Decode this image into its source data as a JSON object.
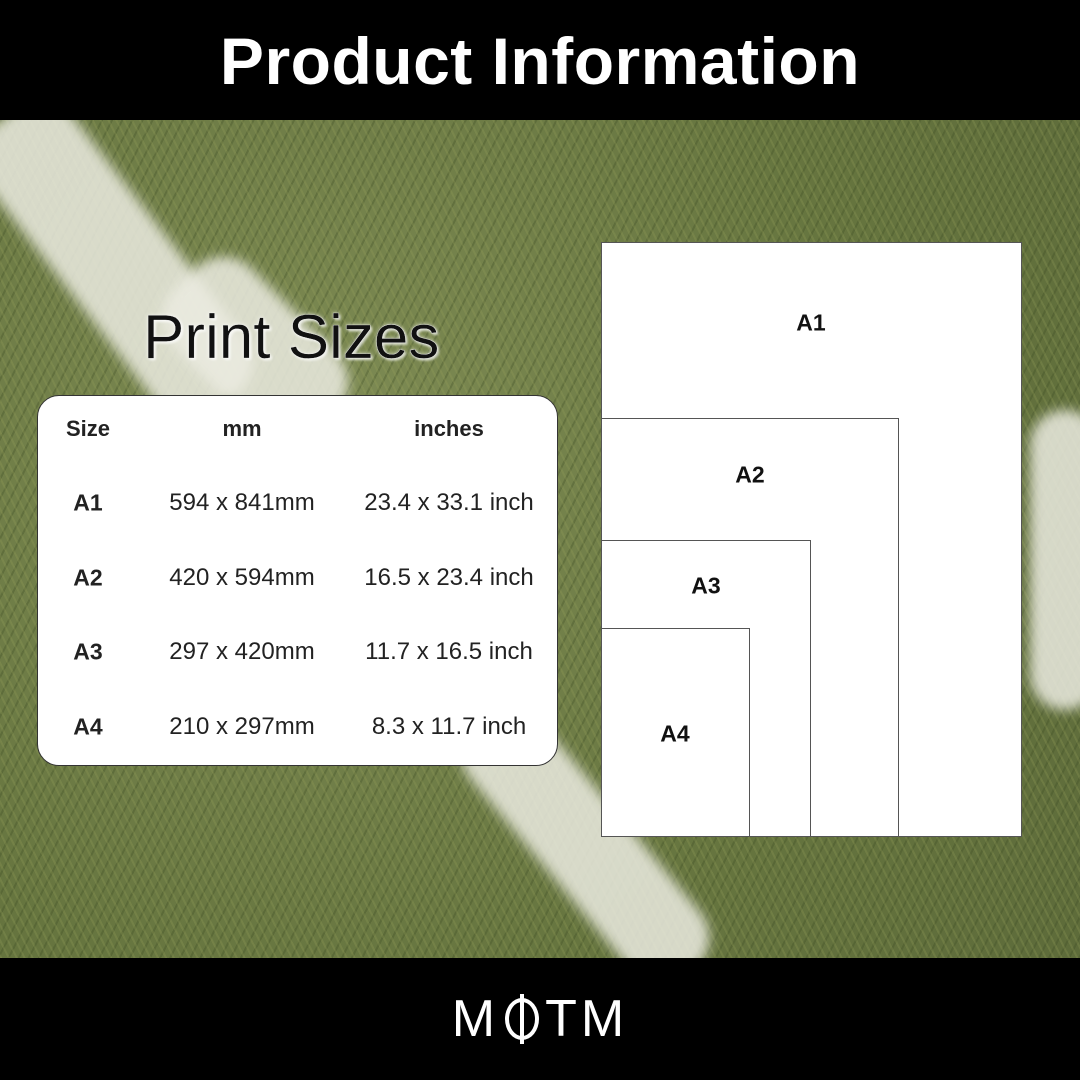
{
  "header": {
    "title": "Product Information"
  },
  "section_title": "Print Sizes",
  "table": {
    "columns": [
      "Size",
      "mm",
      "inches"
    ],
    "rows": [
      {
        "size": "A1",
        "mm": "594 x 841mm",
        "inches": "23.4 x 33.1 inch"
      },
      {
        "size": "A2",
        "mm": "420 x 594mm",
        "inches": "16.5 x 23.4 inch"
      },
      {
        "size": "A3",
        "mm": "297 x 420mm",
        "inches": "11.7 x 16.5 inch"
      },
      {
        "size": "A4",
        "mm": "210 x 297mm",
        "inches": "8.3 x 11.7 inch"
      }
    ]
  },
  "diagram": {
    "labels": [
      "A1",
      "A2",
      "A3",
      "A4"
    ]
  },
  "footer": {
    "logo": "MOTM"
  },
  "colors": {
    "bars": "#000000",
    "panel": "#ffffff"
  }
}
